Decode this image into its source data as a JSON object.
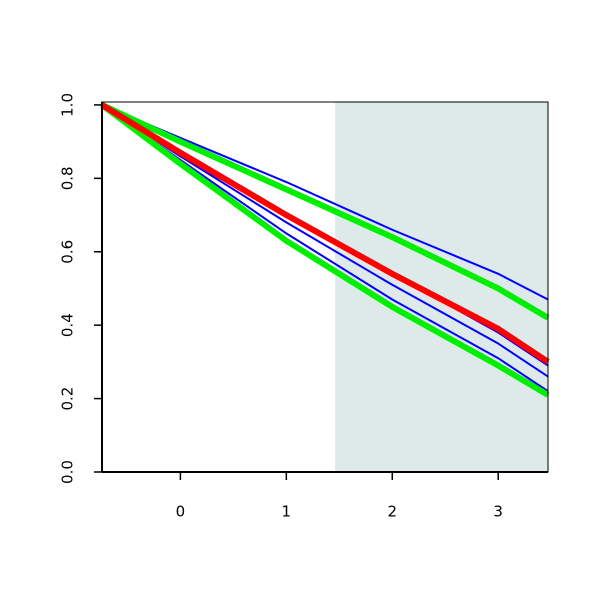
{
  "chart_data": {
    "type": "line",
    "x": [
      -0.74,
      0,
      1,
      2,
      3,
      3.47
    ],
    "xlim": [
      -0.74,
      3.47
    ],
    "xticks": [
      0,
      1,
      2,
      3
    ],
    "ylim": [
      0,
      1.008
    ],
    "yticks": [
      {
        "value": 0,
        "label": "0.0"
      },
      0.2,
      0.4,
      0.6,
      0.8,
      {
        "value": 1,
        "label": "1.0"
      }
    ],
    "shaded_xrange": [
      1.46,
      3.47
    ],
    "shade_color": "#deeaea",
    "series": [
      {
        "color": "#0000ff",
        "values": [
          1.0,
          0.91,
          0.79,
          0.66,
          0.54,
          0.47
        ]
      },
      {
        "color": "#0000ff",
        "values": [
          1.0,
          0.86,
          0.7,
          0.54,
          0.38,
          0.29
        ]
      },
      {
        "color": "#0000ff",
        "values": [
          1.0,
          0.86,
          0.68,
          0.51,
          0.35,
          0.26
        ]
      },
      {
        "color": "#0000ff",
        "values": [
          1.0,
          0.85,
          0.65,
          0.47,
          0.31,
          0.22
        ]
      },
      {
        "color": "#00ee00",
        "values": [
          1.0,
          0.9,
          0.77,
          0.64,
          0.5,
          0.42
        ]
      },
      {
        "color": "#00ee00",
        "values": [
          1.0,
          0.84,
          0.63,
          0.45,
          0.29,
          0.21
        ]
      },
      {
        "color": "#ff0000",
        "values": [
          1.0,
          0.87,
          0.7,
          0.54,
          0.39,
          0.3
        ]
      }
    ]
  }
}
